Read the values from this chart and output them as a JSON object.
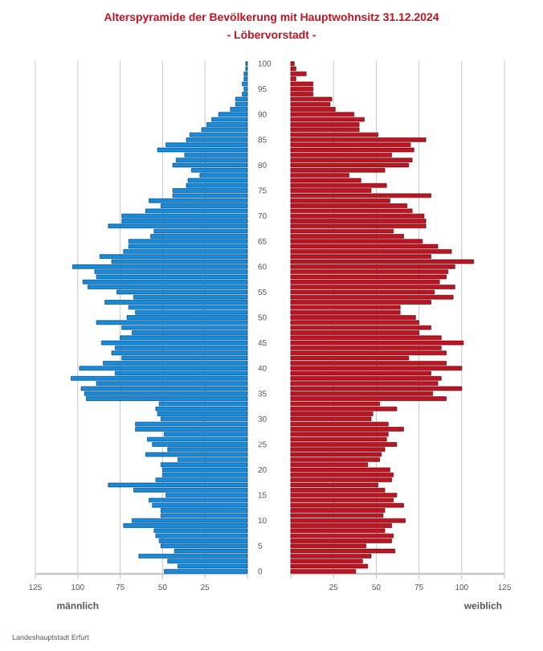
{
  "chart_data": [
    {
      "type": "bar",
      "title": "Alterspyramide der Bevölkerung mit Hauptwohnsitz 31.12.2024",
      "subtitle": "- Löbervorstadt -",
      "xlabel": "männlich",
      "annotations": [
        "Landeshauptstadt Erfurt"
      ],
      "orientation": "horizontal",
      "grid": "x",
      "categories": [
        "100",
        null,
        null,
        null,
        null,
        "95",
        null,
        null,
        null,
        null,
        "90",
        null,
        null,
        null,
        null,
        "85",
        null,
        null,
        null,
        null,
        "80",
        null,
        null,
        null,
        null,
        "75",
        null,
        null,
        null,
        null,
        "70",
        null,
        null,
        null,
        null,
        "65",
        null,
        null,
        null,
        null,
        "60",
        null,
        null,
        null,
        null,
        "55",
        null,
        null,
        null,
        null,
        "50",
        null,
        null,
        null,
        null,
        "45",
        null,
        null,
        null,
        null,
        "40",
        null,
        null,
        null,
        null,
        "35",
        null,
        null,
        null,
        null,
        "30",
        null,
        null,
        null,
        null,
        "25",
        null,
        null,
        null,
        null,
        "20",
        null,
        null,
        null,
        null,
        "15",
        null,
        null,
        null,
        null,
        "10",
        null,
        null,
        null,
        null,
        "5",
        null,
        null,
        null,
        null,
        "0"
      ],
      "xlim": [
        125,
        0
      ],
      "xticks": [
        125,
        100,
        75,
        50,
        25,
        {
          "value": 0,
          "label": null
        }
      ],
      "series": [
        {
          "color": "#0f8ee8",
          "values": [
            1,
            1,
            2,
            2,
            3,
            2,
            3,
            7,
            7,
            10,
            17,
            21,
            24,
            27,
            34,
            36,
            48,
            53,
            37,
            42,
            44,
            33,
            28,
            35,
            36,
            44,
            44,
            58,
            51,
            60,
            74,
            74,
            82,
            55,
            57,
            70,
            70,
            73,
            87,
            80,
            103,
            90,
            89,
            97,
            94,
            77,
            67,
            84,
            70,
            66,
            71,
            89,
            74,
            68,
            75,
            86,
            78,
            80,
            74,
            85,
            99,
            78,
            104,
            89,
            98,
            96,
            95,
            52,
            54,
            53,
            51,
            66,
            66,
            49,
            59,
            56,
            47,
            60,
            41,
            51,
            50,
            50,
            54,
            82,
            67,
            48,
            58,
            56,
            51,
            51,
            68,
            73,
            55,
            54,
            52,
            51,
            43,
            64,
            47,
            41,
            49
          ]
        }
      ]
    },
    {
      "type": "bar",
      "xlabel": "weiblich",
      "orientation": "horizontal",
      "grid": "x",
      "tick_labels": "x",
      "categories": [
        "100",
        null,
        null,
        null,
        null,
        "95",
        null,
        null,
        null,
        null,
        "90",
        null,
        null,
        null,
        null,
        "85",
        null,
        null,
        null,
        null,
        "80",
        null,
        null,
        null,
        null,
        "75",
        null,
        null,
        null,
        null,
        "70",
        null,
        null,
        null,
        null,
        "65",
        null,
        null,
        null,
        null,
        "60",
        null,
        null,
        null,
        null,
        "55",
        null,
        null,
        null,
        null,
        "50",
        null,
        null,
        null,
        null,
        "45",
        null,
        null,
        null,
        null,
        "40",
        null,
        null,
        null,
        null,
        "35",
        null,
        null,
        null,
        null,
        "30",
        null,
        null,
        null,
        null,
        "25",
        null,
        null,
        null,
        null,
        "20",
        null,
        null,
        null,
        null,
        "15",
        null,
        null,
        null,
        null,
        "10",
        null,
        null,
        null,
        null,
        "5",
        null,
        null,
        null,
        null,
        "0"
      ],
      "xlim": [
        0,
        125
      ],
      "xticks": [
        {
          "value": 0,
          "label": null
        },
        25,
        50,
        75,
        100,
        125
      ],
      "series": [
        {
          "color": "#c8101e",
          "values": [
            2,
            3,
            9,
            3,
            13,
            13,
            13,
            24,
            23,
            26,
            37,
            43,
            40,
            40,
            51,
            79,
            70,
            72,
            59,
            71,
            69,
            55,
            34,
            41,
            56,
            47,
            82,
            58,
            68,
            71,
            78,
            79,
            79,
            60,
            66,
            77,
            86,
            94,
            82,
            107,
            96,
            92,
            91,
            87,
            96,
            84,
            95,
            82,
            64,
            64,
            73,
            75,
            82,
            75,
            88,
            101,
            88,
            91,
            69,
            91,
            100,
            82,
            88,
            86,
            100,
            83,
            91,
            52,
            62,
            48,
            47,
            57,
            66,
            57,
            56,
            62,
            55,
            53,
            52,
            45,
            58,
            60,
            59,
            51,
            55,
            62,
            60,
            66,
            55,
            54,
            67,
            59,
            55,
            60,
            59,
            44,
            61,
            47,
            42,
            45,
            38
          ]
        }
      ]
    }
  ]
}
